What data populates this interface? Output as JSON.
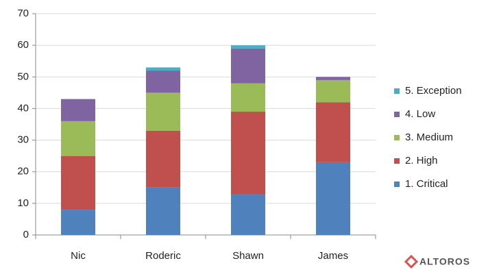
{
  "chart_data": {
    "type": "stacked-bar",
    "categories": [
      "Nic",
      "Roderic",
      "Shawn",
      "James"
    ],
    "series": [
      {
        "name": "1. Critical",
        "color": "#4f81bd",
        "values": [
          8,
          15,
          13,
          23
        ]
      },
      {
        "name": "2. High",
        "color": "#c0504d",
        "values": [
          17,
          18,
          26,
          19
        ]
      },
      {
        "name": "3. Medium",
        "color": "#9bbb59",
        "values": [
          11,
          12,
          9,
          7
        ]
      },
      {
        "name": "4. Low",
        "color": "#8064a2",
        "values": [
          7,
          7,
          11,
          1
        ]
      },
      {
        "name": "5. Exception",
        "color": "#4bacc6",
        "values": [
          0,
          1,
          1,
          0
        ]
      }
    ],
    "ylim": [
      0,
      70
    ],
    "yticks": [
      0,
      10,
      20,
      30,
      40,
      50,
      60,
      70
    ],
    "grid": true,
    "legend": "right"
  },
  "logo": "ALTOROS"
}
